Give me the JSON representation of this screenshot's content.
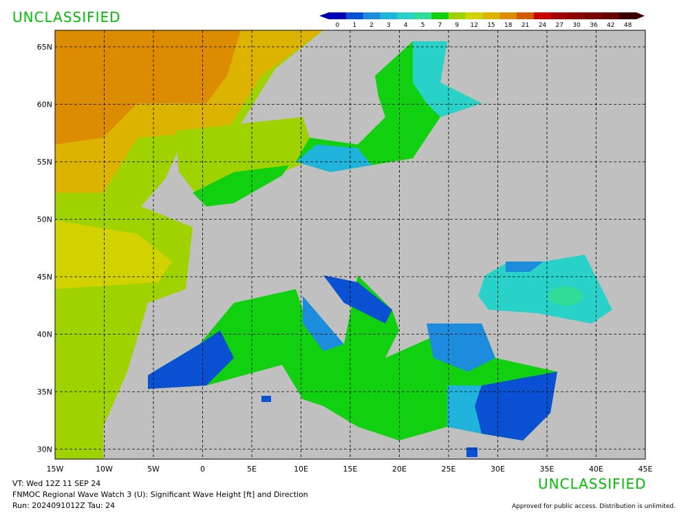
{
  "classification_top": "UNCLASSIFIED",
  "classification_bottom": "UNCLASSIFIED",
  "colorbar": {
    "labels": [
      0,
      1,
      2,
      3,
      4,
      5,
      7,
      9,
      12,
      15,
      18,
      21,
      24,
      27,
      30,
      36,
      42,
      48
    ],
    "colors": [
      "#0000b4",
      "#0a50d2",
      "#1e8cdc",
      "#20b4dc",
      "#28d2c8",
      "#30dc96",
      "#10d010",
      "#a0d200",
      "#d2d200",
      "#dcb400",
      "#dc8c00",
      "#d25a00",
      "#c80000",
      "#a00000",
      "#8c0000",
      "#780000",
      "#640000",
      "#3c0000"
    ]
  },
  "map": {
    "lat_labels": [
      "65N",
      "60N",
      "55N",
      "50N",
      "45N",
      "40N",
      "35N",
      "30N"
    ],
    "lon_labels": [
      "15W",
      "10W",
      "5W",
      "0",
      "5E",
      "10E",
      "15E",
      "20E",
      "25E",
      "30E",
      "35E",
      "40E",
      "45E"
    ]
  },
  "footer": {
    "vt": "VT: Wed 12Z 11 SEP 24",
    "product": "FNMOC Regional Wave Watch 3 (U): Significant Wave Height [ft] and Direction",
    "run": "Run: 2024091012Z Tau: 24",
    "approval": "Approved for public access. Distribution is unlimited."
  }
}
